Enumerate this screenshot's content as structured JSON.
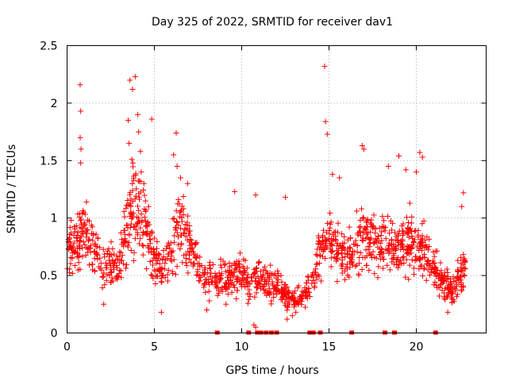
{
  "chart_data": {
    "type": "scatter",
    "title": "Day 325 of 2022, SRMTID for receiver dav1",
    "xlabel": "GPS time / hours",
    "ylabel": "SRMTID / TECUs",
    "xlim": [
      0,
      24
    ],
    "ylim": [
      0,
      2.5
    ],
    "xticks": [
      0,
      5,
      10,
      15,
      20
    ],
    "xtick_labels": [
      "0",
      "5",
      "10",
      "15",
      "20"
    ],
    "yticks": [
      0,
      0.5,
      1,
      1.5,
      2,
      2.5
    ],
    "ytick_labels": [
      "0",
      "0.5",
      "1",
      "1.5",
      "2",
      "2.5"
    ],
    "grid": true,
    "marker": "+",
    "color": "#ff0000",
    "series": [
      {
        "name": "SRMTID",
        "profile": [
          [
            0.0,
            0.72
          ],
          [
            0.5,
            0.75
          ],
          [
            0.8,
            0.95
          ],
          [
            1.2,
            0.8
          ],
          [
            1.6,
            0.75
          ],
          [
            2.0,
            0.55
          ],
          [
            2.5,
            0.6
          ],
          [
            3.0,
            0.6
          ],
          [
            3.5,
            0.95
          ],
          [
            3.7,
            1.2
          ],
          [
            4.0,
            1.05
          ],
          [
            4.5,
            0.95
          ],
          [
            5.0,
            0.65
          ],
          [
            5.5,
            0.55
          ],
          [
            6.0,
            0.75
          ],
          [
            6.5,
            0.95
          ],
          [
            7.0,
            0.75
          ],
          [
            7.5,
            0.6
          ],
          [
            8.0,
            0.48
          ],
          [
            8.5,
            0.45
          ],
          [
            9.0,
            0.48
          ],
          [
            9.5,
            0.48
          ],
          [
            10.0,
            0.5
          ],
          [
            10.5,
            0.4
          ],
          [
            11.0,
            0.5
          ],
          [
            11.5,
            0.45
          ],
          [
            12.0,
            0.42
          ],
          [
            12.5,
            0.32
          ],
          [
            13.0,
            0.28
          ],
          [
            13.5,
            0.32
          ],
          [
            14.0,
            0.45
          ],
          [
            14.5,
            0.7
          ],
          [
            15.0,
            0.8
          ],
          [
            15.5,
            0.72
          ],
          [
            16.0,
            0.65
          ],
          [
            16.5,
            0.75
          ],
          [
            17.0,
            0.85
          ],
          [
            17.5,
            0.8
          ],
          [
            18.0,
            0.75
          ],
          [
            18.5,
            0.8
          ],
          [
            19.0,
            0.7
          ],
          [
            19.5,
            0.8
          ],
          [
            20.0,
            0.75
          ],
          [
            20.5,
            0.7
          ],
          [
            21.0,
            0.6
          ],
          [
            21.5,
            0.45
          ],
          [
            22.0,
            0.35
          ],
          [
            22.5,
            0.5
          ],
          [
            22.8,
            0.6
          ]
        ],
        "highlights": [
          [
            0.75,
            2.16
          ],
          [
            0.78,
            1.93
          ],
          [
            0.75,
            1.7
          ],
          [
            0.8,
            1.6
          ],
          [
            0.78,
            1.48
          ],
          [
            3.6,
            2.2
          ],
          [
            3.75,
            2.12
          ],
          [
            3.9,
            2.23
          ],
          [
            3.5,
            1.85
          ],
          [
            3.55,
            1.65
          ],
          [
            4.05,
            1.9
          ],
          [
            4.1,
            1.75
          ],
          [
            4.2,
            1.58
          ],
          [
            4.25,
            1.4
          ],
          [
            4.4,
            1.3
          ],
          [
            4.85,
            1.86
          ],
          [
            6.25,
            1.74
          ],
          [
            6.1,
            1.55
          ],
          [
            6.3,
            1.45
          ],
          [
            6.5,
            1.35
          ],
          [
            6.9,
            1.3
          ],
          [
            10.8,
            1.2
          ],
          [
            12.5,
            1.18
          ],
          [
            14.75,
            2.32
          ],
          [
            14.8,
            1.84
          ],
          [
            14.9,
            1.73
          ],
          [
            15.2,
            1.38
          ],
          [
            15.6,
            1.35
          ],
          [
            16.9,
            1.63
          ],
          [
            17.0,
            1.6
          ],
          [
            18.4,
            1.45
          ],
          [
            19.0,
            1.54
          ],
          [
            19.4,
            1.42
          ],
          [
            20.2,
            1.57
          ],
          [
            20.35,
            1.53
          ],
          [
            20.0,
            1.4
          ],
          [
            22.7,
            1.22
          ],
          [
            22.6,
            1.1
          ],
          [
            9.6,
            1.23
          ]
        ],
        "lows": [
          [
            10.7,
            0.07
          ],
          [
            10.8,
            0.05
          ],
          [
            12.6,
            0.12
          ],
          [
            12.9,
            0.15
          ],
          [
            13.1,
            0.18
          ],
          [
            8.0,
            0.2
          ],
          [
            9.1,
            0.25
          ],
          [
            2.1,
            0.25
          ],
          [
            5.4,
            0.18
          ],
          [
            21.8,
            0.18
          ]
        ],
        "zeros_x": [
          8.6,
          10.4,
          10.9,
          11.1,
          11.4,
          11.7,
          12.0,
          13.9,
          14.1,
          14.5,
          16.3,
          18.2,
          18.75,
          21.1
        ]
      }
    ]
  }
}
